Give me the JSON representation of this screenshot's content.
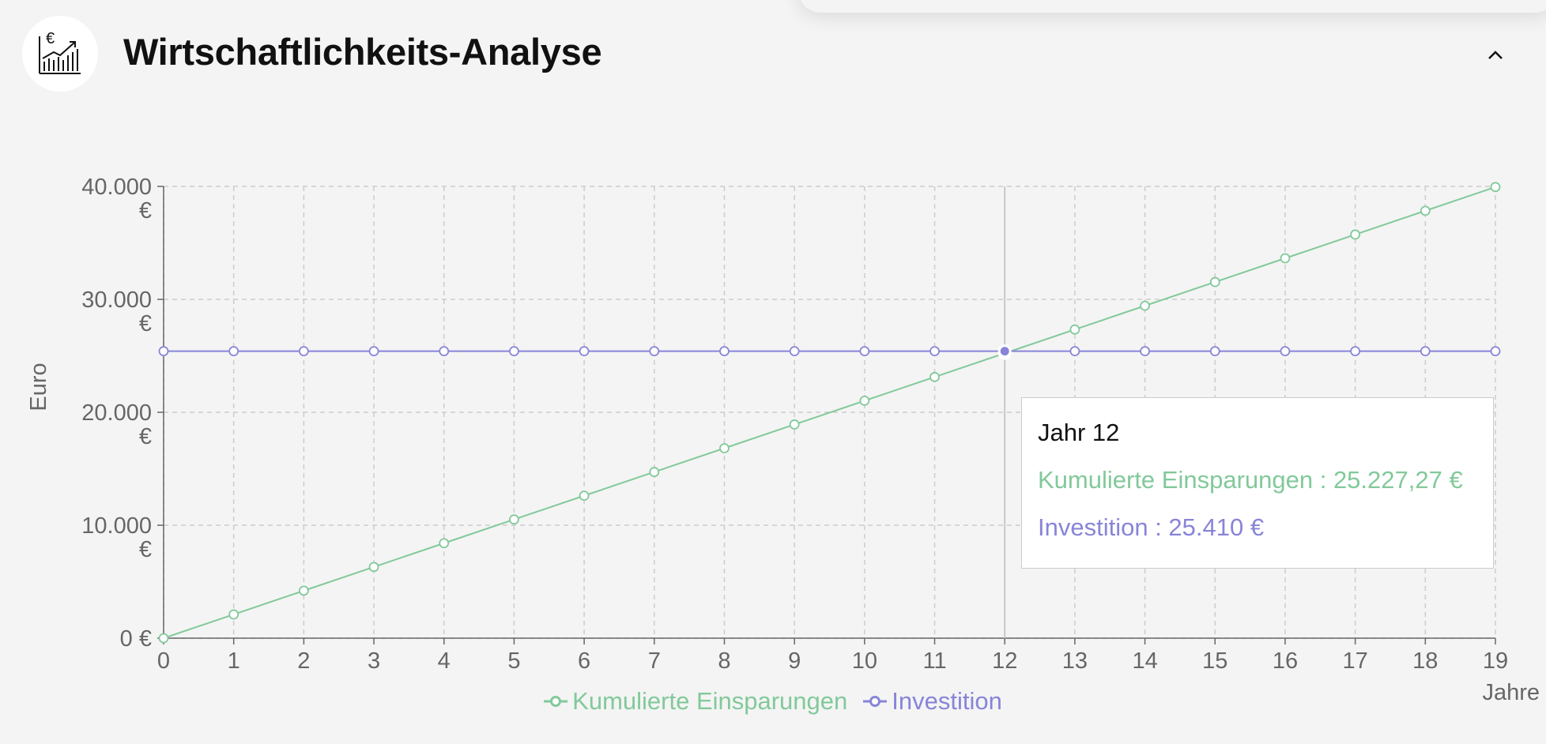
{
  "header": {
    "title": "Wirtschaftlichkeits-Analyse",
    "logo_icon": "chart-euro-icon",
    "logo_symbol": "€",
    "collapse_icon": "chevron-up-icon"
  },
  "colors": {
    "savings": "#82c99a",
    "investment": "#8884d8",
    "axis_text": "#666666",
    "grid": "#cccccc"
  },
  "tooltip": {
    "title": "Jahr 12",
    "savings_text": "Kumulierte Einsparungen : 25.227,27 €",
    "investment_text": "Investition : 25.410 €"
  },
  "chart_data": {
    "type": "line",
    "title": "",
    "xlabel": "Jahre",
    "ylabel": "Euro",
    "x": [
      0,
      1,
      2,
      3,
      4,
      5,
      6,
      7,
      8,
      9,
      10,
      11,
      12,
      13,
      14,
      15,
      16,
      17,
      18,
      19
    ],
    "ylim": [
      0,
      40000
    ],
    "y_ticks": [
      0,
      10000,
      20000,
      30000,
      40000
    ],
    "y_tick_labels": [
      [
        "0 €"
      ],
      [
        "10.000",
        "€"
      ],
      [
        "20.000",
        "€"
      ],
      [
        "30.000",
        "€"
      ],
      [
        "40.000",
        "€"
      ]
    ],
    "grid": true,
    "legend_position": "bottom-center",
    "series": [
      {
        "name": "Kumulierte Einsparungen",
        "color": "#82c99a",
        "values": [
          0,
          2102.27,
          4204.55,
          6306.82,
          8409.09,
          10511.36,
          12613.64,
          14715.91,
          16818.18,
          18920.45,
          21022.73,
          23125.0,
          25227.27,
          27329.55,
          29431.82,
          31534.09,
          33636.36,
          35738.64,
          37840.91,
          39943.18
        ]
      },
      {
        "name": "Investition",
        "color": "#8884d8",
        "values": [
          25410,
          25410,
          25410,
          25410,
          25410,
          25410,
          25410,
          25410,
          25410,
          25410,
          25410,
          25410,
          25410,
          25410,
          25410,
          25410,
          25410,
          25410,
          25410,
          25410
        ]
      }
    ],
    "active_index": 12
  }
}
